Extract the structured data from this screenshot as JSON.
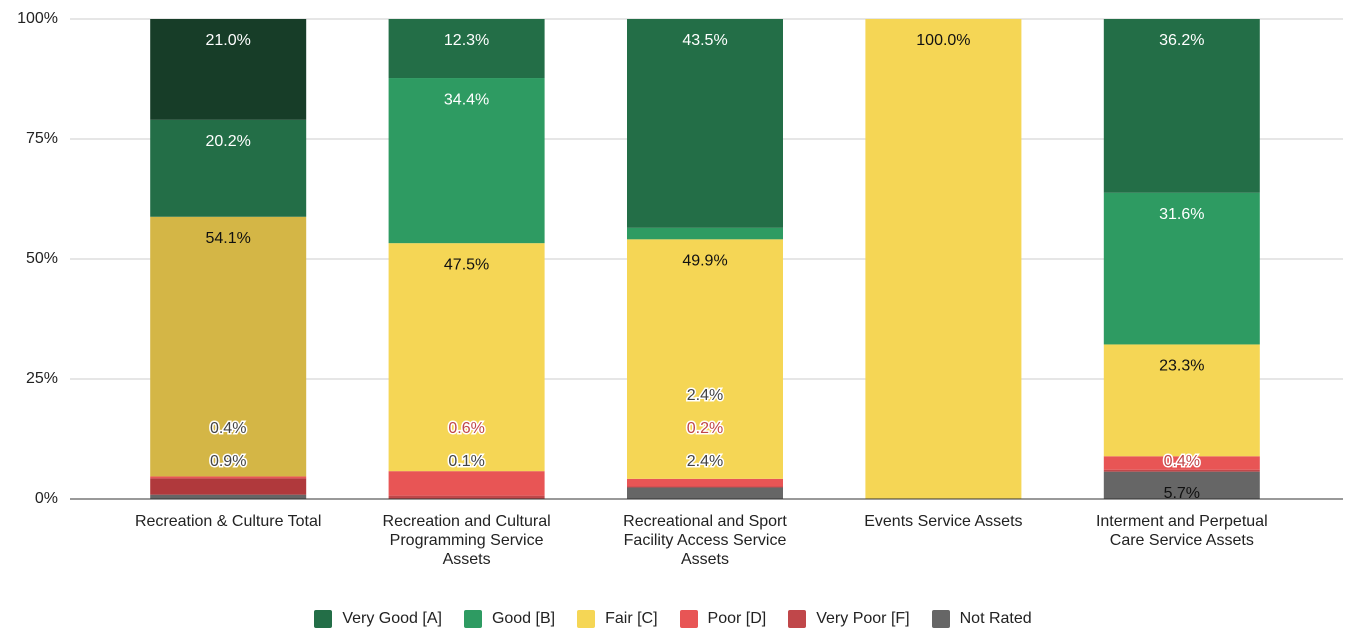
{
  "chart_data": {
    "type": "stacked_bar",
    "categories": [
      "Recreation & Culture Total",
      "Recreation and Cultural Programming Service Assets",
      "Recreational and Sport Facility Access Service Assets",
      "Events Service Assets",
      "Interment and Perpetual Care Service Assets"
    ],
    "series": [
      {
        "name": "Not Rated",
        "color": "#666666",
        "values": [
          0.9,
          0.1,
          2.4,
          0,
          5.7
        ],
        "value_labels": [
          "0.9%",
          "0.1%",
          "2.4%",
          null,
          "5.7%"
        ]
      },
      {
        "name": "Very Poor [F]",
        "color": "#c0474a",
        "point_colors": [
          "#b0393c",
          null,
          null,
          null,
          null
        ],
        "values": [
          3.4,
          0.6,
          0.2,
          0,
          0.4
        ],
        "value_labels": [
          null,
          "0.6%",
          "0.2%",
          null,
          "0.4%"
        ]
      },
      {
        "name": "Poor [D]",
        "color": "#e85555",
        "values": [
          0.4,
          5.1,
          1.6,
          0,
          2.8
        ],
        "value_labels": [
          "0.4%",
          null,
          null,
          null,
          null
        ]
      },
      {
        "name": "Fair [C]",
        "color": "#f5d655",
        "point_colors": [
          "#d4b646",
          null,
          null,
          null,
          null
        ],
        "values": [
          54.1,
          47.5,
          49.9,
          100,
          23.3
        ],
        "value_labels": [
          "54.1%",
          "47.5%",
          "49.9%",
          "100.0%",
          "23.3%"
        ]
      },
      {
        "name": "Good [B]",
        "color": "#2e9b62",
        "point_colors": [
          "#236e47",
          null,
          null,
          null,
          null
        ],
        "values": [
          20.2,
          34.4,
          2.4,
          0,
          31.6
        ],
        "value_labels": [
          "20.2%",
          "34.4%",
          "2.4%",
          null,
          "31.6%"
        ]
      },
      {
        "name": "Very Good [A]",
        "color": "#236e47",
        "point_colors": [
          "#173d28",
          null,
          null,
          null,
          null
        ],
        "values": [
          21.0,
          12.3,
          43.5,
          0,
          36.2
        ],
        "value_labels": [
          "21.0%",
          "12.3%",
          "43.5%",
          null,
          "36.2%"
        ]
      }
    ],
    "legend_order": [
      5,
      4,
      3,
      2,
      1,
      0
    ],
    "ylim": [
      0,
      100
    ],
    "yticks": [
      {
        "value": 0,
        "label": "0%"
      },
      {
        "value": 25,
        "label": "25%"
      },
      {
        "value": 50,
        "label": "50%"
      },
      {
        "value": 75,
        "label": "75%"
      },
      {
        "value": 100,
        "label": "100%"
      }
    ],
    "grid": true,
    "legend": "bottom"
  }
}
